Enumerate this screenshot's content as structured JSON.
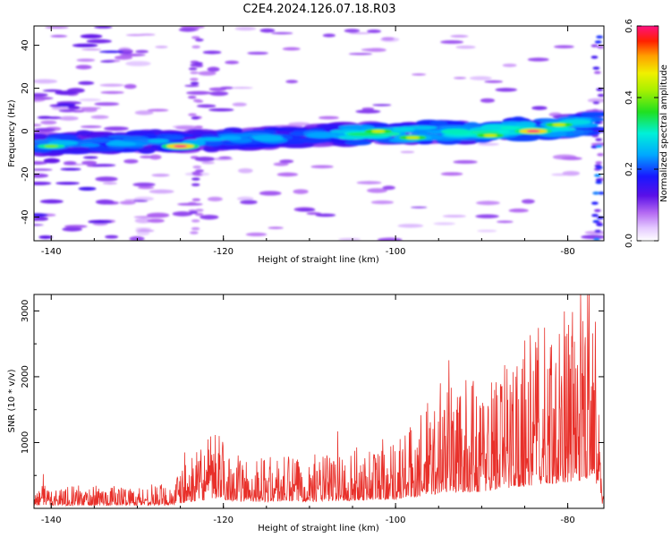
{
  "title": "C2E4.2024.126.07.18.R03",
  "colors": {
    "snr_line": "#e8302a",
    "background": "#ffffff",
    "frame": "#000000"
  },
  "chart_data": [
    {
      "type": "heatmap",
      "title": "C2E4.2024.126.07.18.R03",
      "xlabel": "Height of straight line (km)",
      "ylabel": "Frequency (Hz)",
      "xlim": [
        -142,
        -75.8
      ],
      "ylim": [
        -51,
        49
      ],
      "xticks": [
        -140,
        -120,
        -100,
        -80
      ],
      "yticks": [
        -40,
        -20,
        0,
        20,
        40
      ],
      "colorbar": {
        "label": "Normalized spectral amplitude",
        "range": [
          0.0,
          0.6
        ],
        "ticks": [
          0.0,
          0.2,
          0.4,
          0.6
        ],
        "colormap": "white-purple-blue-cyan-green-yellow-red-magenta"
      },
      "ridge": {
        "description": "narrow band of high amplitude near 0 Hz drifting from about -6 Hz at -142 km to about +3 Hz at -77 km",
        "points": [
          [
            -142,
            -6
          ],
          [
            -135,
            -5
          ],
          [
            -125,
            -5
          ],
          [
            -120,
            -4
          ],
          [
            -110,
            -2
          ],
          [
            -100,
            -1
          ],
          [
            -90,
            0
          ],
          [
            -80,
            2
          ],
          [
            -77,
            4
          ]
        ]
      },
      "peaks": [
        {
          "x": -125,
          "y": -7,
          "value": 0.6
        },
        {
          "x": -84,
          "y": 0,
          "value": 0.6
        },
        {
          "x": -102,
          "y": 0,
          "value": 0.45
        },
        {
          "x": -98,
          "y": -3,
          "value": 0.45
        },
        {
          "x": -89,
          "y": -2,
          "value": 0.45
        },
        {
          "x": -81,
          "y": 3,
          "value": 0.45
        },
        {
          "x": -140,
          "y": -7,
          "value": 0.4
        }
      ]
    },
    {
      "type": "line",
      "xlabel": "Height of straight line (km)",
      "ylabel": "SNR (10 * v/v)",
      "xlim": [
        -142,
        -75.8
      ],
      "ylim": [
        0,
        3250
      ],
      "xticks": [
        -140,
        -120,
        -100,
        -80
      ],
      "yticks": [
        1000,
        2000,
        3000
      ],
      "envelope": {
        "x": [
          -142,
          -130,
          -126,
          -125,
          -121,
          -118,
          -110,
          -106,
          -100,
          -96,
          -94,
          -90,
          -86,
          -82,
          -78,
          -77,
          -76,
          -75.8
        ],
        "y": [
          180,
          180,
          200,
          300,
          600,
          400,
          420,
          450,
          560,
          800,
          1000,
          1000,
          1300,
          1500,
          1700,
          2200,
          150,
          150
        ]
      },
      "peaks": [
        {
          "x": -140.9,
          "y": 520
        },
        {
          "x": -124.5,
          "y": 850
        },
        {
          "x": -120.5,
          "y": 1100
        },
        {
          "x": -106.7,
          "y": 1170
        },
        {
          "x": -101.5,
          "y": 1050
        },
        {
          "x": -96.3,
          "y": 1600
        },
        {
          "x": -94.8,
          "y": 1900
        },
        {
          "x": -93.8,
          "y": 2250
        },
        {
          "x": -91,
          "y": 1850
        },
        {
          "x": -88.5,
          "y": 1800
        },
        {
          "x": -86,
          "y": 2000
        },
        {
          "x": -85,
          "y": 2550
        },
        {
          "x": -83.5,
          "y": 2250
        },
        {
          "x": -82,
          "y": 2450
        },
        {
          "x": -81,
          "y": 2650
        },
        {
          "x": -79.5,
          "y": 2450
        },
        {
          "x": -78,
          "y": 2450
        },
        {
          "x": -77.5,
          "y": 3250
        },
        {
          "x": -76.5,
          "y": 450
        }
      ]
    }
  ]
}
